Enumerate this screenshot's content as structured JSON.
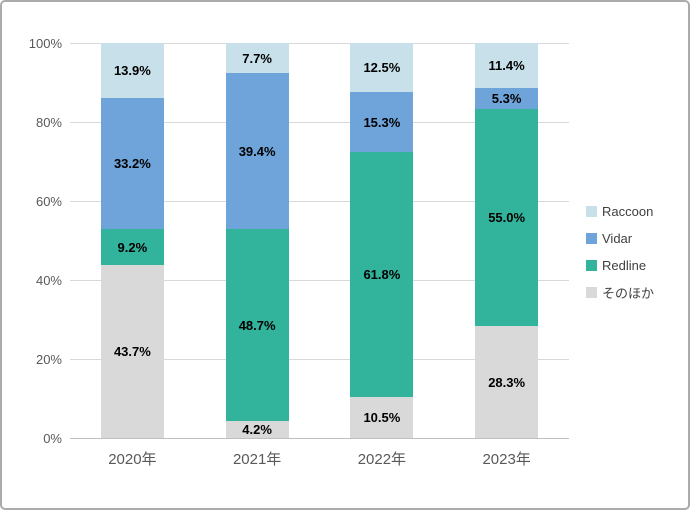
{
  "chart_data": {
    "type": "bar",
    "stacked": true,
    "percent_stacked": true,
    "title": "",
    "xlabel": "",
    "ylabel": "",
    "unit": "%",
    "categories": [
      "2020年",
      "2021年",
      "2022年",
      "2023年"
    ],
    "series": [
      {
        "name": "そのほか",
        "color": "#d9d9d9",
        "values": [
          43.7,
          4.2,
          10.5,
          28.3
        ]
      },
      {
        "name": "Redline",
        "color": "#32b39c",
        "values": [
          9.2,
          48.7,
          61.8,
          55.0
        ]
      },
      {
        "name": "Vidar",
        "color": "#6fa4da",
        "values": [
          33.2,
          39.4,
          15.3,
          5.3
        ]
      },
      {
        "name": "Raccoon",
        "color": "#c7e0ea",
        "values": [
          13.9,
          7.7,
          12.5,
          11.4
        ]
      }
    ],
    "legend": {
      "position": "right",
      "order_top_to_bottom": [
        "Raccoon",
        "Vidar",
        "Redline",
        "そのほか"
      ]
    },
    "ylim": [
      0,
      100
    ],
    "yticks": [
      "0%",
      "20%",
      "40%",
      "60%",
      "80%",
      "100%"
    ],
    "grid": true,
    "colors": {
      "gridline": "#d9d9d9",
      "axis_line": "#bfbfbf",
      "axis_text": "#595959",
      "data_label_text": "#000000",
      "frame_border": "#ababab",
      "background": "#ffffff"
    }
  }
}
